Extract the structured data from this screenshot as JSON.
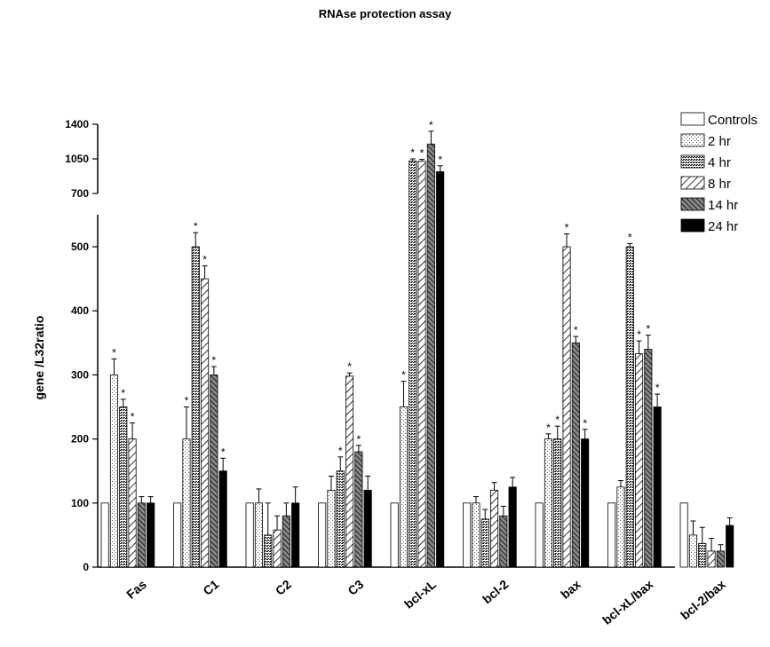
{
  "chart_data": {
    "type": "bar",
    "title": "RNAse protection assay",
    "ylabel": "gene /L32ratio",
    "xlabel": "",
    "categories": [
      "Fas",
      "C1",
      "C2",
      "C3",
      "bcl-xL",
      "bcl-2",
      "bax",
      "bcl-xL/bax",
      "bcl-2/bax"
    ],
    "ylim_lower": [
      0,
      550
    ],
    "ylim_upper": [
      700,
      1400
    ],
    "yticks_lower": [
      0,
      100,
      200,
      300,
      400,
      500
    ],
    "yticks_upper": [
      700,
      1050,
      1400
    ],
    "legend_position": "top-right",
    "series": [
      {
        "name": "Controls",
        "pattern": "white",
        "values": [
          100,
          100,
          100,
          100,
          100,
          100,
          100,
          100,
          100
        ],
        "errors": [
          0,
          0,
          0,
          0,
          0,
          0,
          0,
          0,
          0
        ],
        "significant": [
          false,
          false,
          false,
          false,
          false,
          false,
          false,
          false,
          false
        ]
      },
      {
        "name": "2 hr",
        "pattern": "dots-light",
        "values": [
          300,
          200,
          100,
          120,
          250,
          100,
          200,
          125,
          50
        ],
        "errors": [
          25,
          50,
          22,
          22,
          40,
          10,
          8,
          10,
          22
        ],
        "significant": [
          true,
          true,
          false,
          false,
          true,
          false,
          true,
          false,
          false
        ]
      },
      {
        "name": "4 hr",
        "pattern": "dots-dense",
        "values": [
          250,
          500,
          50,
          150,
          1030,
          75,
          200,
          500,
          37
        ],
        "errors": [
          12,
          22,
          50,
          22,
          20,
          15,
          20,
          5,
          25
        ],
        "significant": [
          true,
          true,
          false,
          true,
          true,
          false,
          true,
          true,
          false
        ]
      },
      {
        "name": "8 hr",
        "pattern": "hatch",
        "values": [
          200,
          450,
          58,
          298,
          1025,
          120,
          500,
          333,
          25
        ],
        "errors": [
          25,
          20,
          22,
          5,
          20,
          12,
          20,
          20,
          20
        ],
        "significant": [
          true,
          true,
          false,
          true,
          true,
          false,
          true,
          true,
          false
        ]
      },
      {
        "name": "14 hr",
        "pattern": "hatch-dark",
        "values": [
          100,
          300,
          80,
          180,
          1200,
          80,
          350,
          340,
          25
        ],
        "errors": [
          10,
          13,
          20,
          10,
          130,
          15,
          10,
          22,
          10
        ],
        "significant": [
          false,
          true,
          false,
          true,
          true,
          false,
          true,
          true,
          false
        ]
      },
      {
        "name": "24 hr",
        "pattern": "black",
        "values": [
          100,
          150,
          100,
          120,
          920,
          125,
          200,
          250,
          65
        ],
        "errors": [
          10,
          20,
          25,
          22,
          60,
          15,
          15,
          20,
          12
        ],
        "significant": [
          false,
          true,
          false,
          false,
          true,
          false,
          true,
          true,
          false
        ]
      }
    ],
    "significance_marker": "*"
  }
}
